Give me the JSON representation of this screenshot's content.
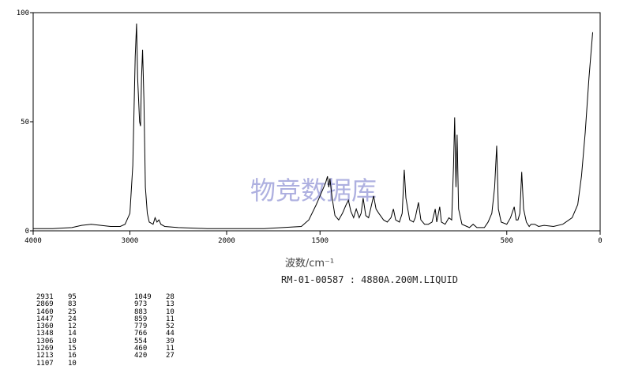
{
  "chart_data": {
    "type": "line",
    "xlabel": "波数/cm⁻¹",
    "subtitle": "RM-01-00587 : 4880A.200M.LIQUID",
    "watermark": "物竞数据库",
    "color": "#000000",
    "xlim": [
      4000,
      0
    ],
    "xbreak": 2000,
    "xticks": [
      4000,
      3000,
      2000,
      1500,
      500,
      0
    ],
    "ylim": [
      0,
      100
    ],
    "yticks": [
      0,
      50,
      100
    ],
    "x": [
      4000,
      3800,
      3600,
      3500,
      3400,
      3300,
      3200,
      3100,
      3050,
      3000,
      2970,
      2945,
      2931,
      2920,
      2900,
      2890,
      2880,
      2869,
      2855,
      2840,
      2820,
      2800,
      2760,
      2740,
      2720,
      2700,
      2680,
      2640,
      2500,
      2200,
      2000,
      1800,
      1700,
      1600,
      1560,
      1520,
      1490,
      1470,
      1460,
      1453,
      1447,
      1435,
      1420,
      1400,
      1380,
      1360,
      1348,
      1335,
      1320,
      1306,
      1290,
      1280,
      1269,
      1255,
      1240,
      1213,
      1200,
      1185,
      1160,
      1140,
      1120,
      1107,
      1095,
      1075,
      1060,
      1049,
      1040,
      1020,
      1000,
      990,
      973,
      960,
      940,
      920,
      900,
      883,
      875,
      859,
      850,
      830,
      810,
      795,
      785,
      779,
      772,
      766,
      758,
      740,
      700,
      680,
      660,
      620,
      600,
      580,
      565,
      554,
      545,
      530,
      500,
      480,
      460,
      450,
      440,
      430,
      420,
      410,
      395,
      380,
      370,
      350,
      330,
      300,
      250,
      200,
      150,
      120,
      100,
      80,
      60,
      40
    ],
    "values": [
      1,
      1,
      1.5,
      2.5,
      3,
      2.5,
      2,
      2,
      3,
      8,
      30,
      80,
      95,
      70,
      50,
      48,
      70,
      83,
      60,
      20,
      8,
      4,
      3,
      6,
      4,
      5,
      3,
      2,
      1.5,
      1,
      1,
      1,
      1.5,
      2,
      5,
      12,
      18,
      22,
      25,
      20,
      24,
      15,
      7,
      5,
      8,
      12,
      14,
      9,
      6,
      10,
      6,
      8,
      15,
      7,
      6,
      16,
      10,
      8,
      5,
      4,
      6,
      10,
      5,
      4,
      8,
      28,
      15,
      5,
      4,
      6,
      13,
      5,
      3,
      3,
      4,
      10,
      4,
      11,
      4,
      3,
      6,
      5,
      30,
      52,
      20,
      44,
      10,
      3,
      1.5,
      3,
      1.5,
      1.5,
      4,
      8,
      20,
      39,
      10,
      4,
      3,
      6,
      11,
      5,
      5,
      8,
      27,
      10,
      4,
      2,
      3,
      3,
      2,
      2.5,
      2,
      3,
      6,
      12,
      25,
      45,
      70,
      91
    ]
  },
  "peak_table": {
    "left": [
      [
        2931,
        95
      ],
      [
        2869,
        83
      ],
      [
        1460,
        25
      ],
      [
        1447,
        24
      ],
      [
        1360,
        12
      ],
      [
        1348,
        14
      ],
      [
        1306,
        10
      ],
      [
        1269,
        15
      ],
      [
        1213,
        16
      ],
      [
        1107,
        10
      ]
    ],
    "right": [
      [
        1049,
        28
      ],
      [
        973,
        13
      ],
      [
        883,
        10
      ],
      [
        859,
        11
      ],
      [
        779,
        52
      ],
      [
        766,
        44
      ],
      [
        554,
        39
      ],
      [
        460,
        11
      ],
      [
        420,
        27
      ]
    ]
  }
}
